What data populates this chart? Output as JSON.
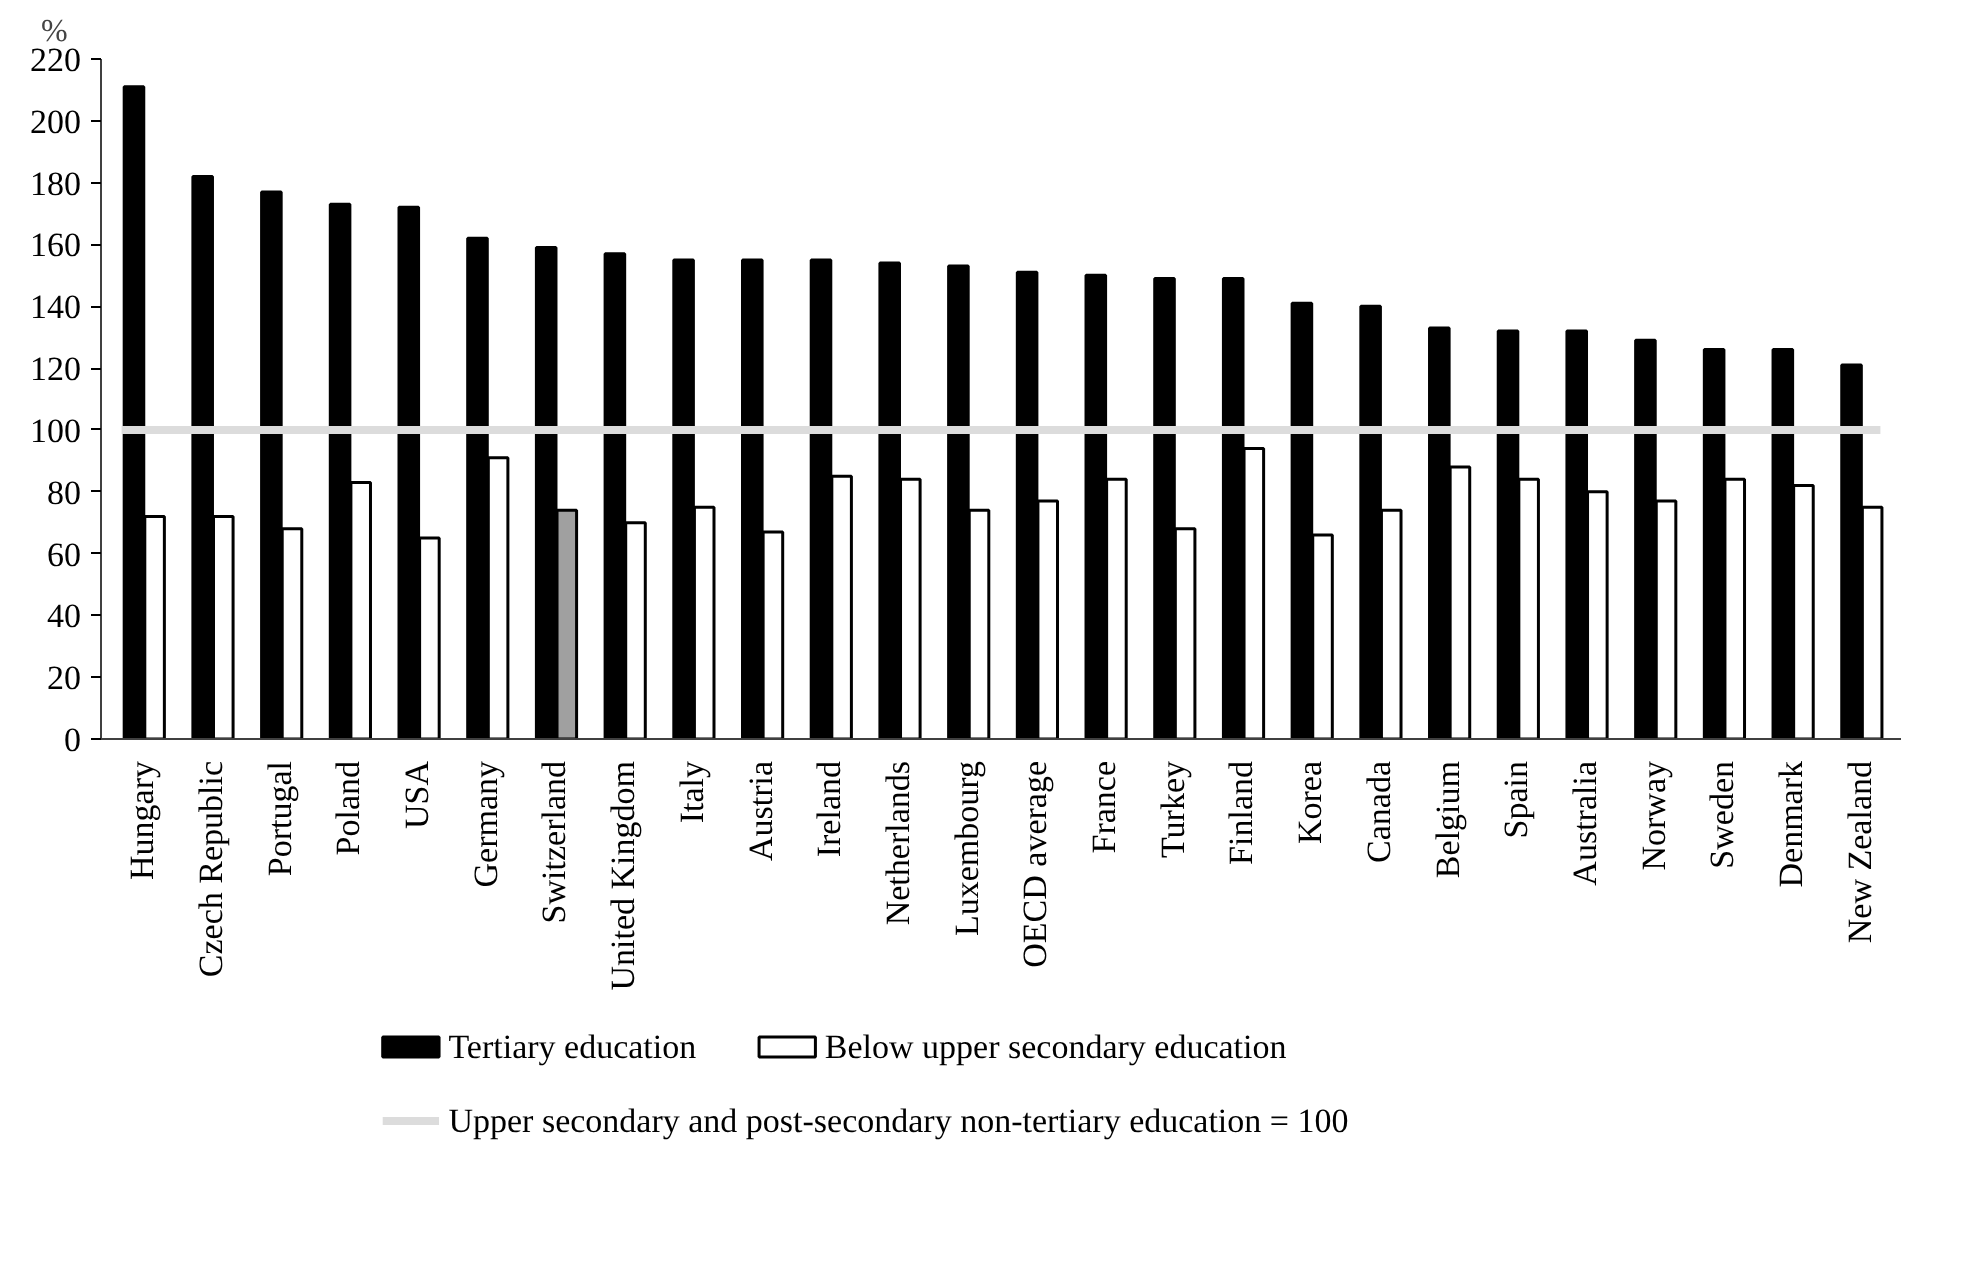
{
  "chart_data": {
    "type": "bar",
    "ylabel": "%",
    "categories": [
      "Hungary",
      "Czech Republic",
      "Portugal",
      "Poland",
      "USA",
      "Germany",
      "Switzerland",
      "United Kingdom",
      "Italy",
      "Austria",
      "Ireland",
      "Netherlands",
      "Luxembourg",
      "OECD average",
      "France",
      "Turkey",
      "Finland",
      "Korea",
      "Canada",
      "Belgium",
      "Spain",
      "Australia",
      "Norway",
      "Sweden",
      "Denmark",
      "New Zealand"
    ],
    "series": [
      {
        "name": "Tertiary education",
        "color": "#000000",
        "values": [
          211,
          182,
          177,
          173,
          172,
          162,
          159,
          157,
          155,
          155,
          155,
          154,
          153,
          151,
          150,
          149,
          149,
          141,
          140,
          133,
          132,
          132,
          129,
          126,
          126,
          121
        ]
      },
      {
        "name": "Below upper secondary education",
        "color": "#ffffff",
        "colors": [
          null,
          null,
          null,
          null,
          null,
          null,
          "#a0a0a0",
          null,
          null,
          null,
          null,
          null,
          null,
          null,
          null,
          null,
          null,
          null,
          null,
          null,
          null,
          null,
          null,
          null,
          null,
          null
        ],
        "values": [
          72,
          72,
          68,
          83,
          65,
          91,
          74,
          70,
          75,
          67,
          85,
          84,
          74,
          77,
          84,
          68,
          94,
          66,
          74,
          88,
          84,
          80,
          77,
          84,
          82,
          75
        ]
      }
    ],
    "ylim": [
      0,
      220
    ],
    "yticks": [
      0,
      20,
      40,
      60,
      80,
      100,
      120,
      140,
      160,
      180,
      200,
      220
    ],
    "ref_lines": [
      {
        "axis": "y",
        "value": 100,
        "label": "Upper secondary and post-secondary non-tertiary education = 100",
        "color": "#dcdcdc"
      }
    ],
    "grid": false,
    "legend": "bottom"
  }
}
